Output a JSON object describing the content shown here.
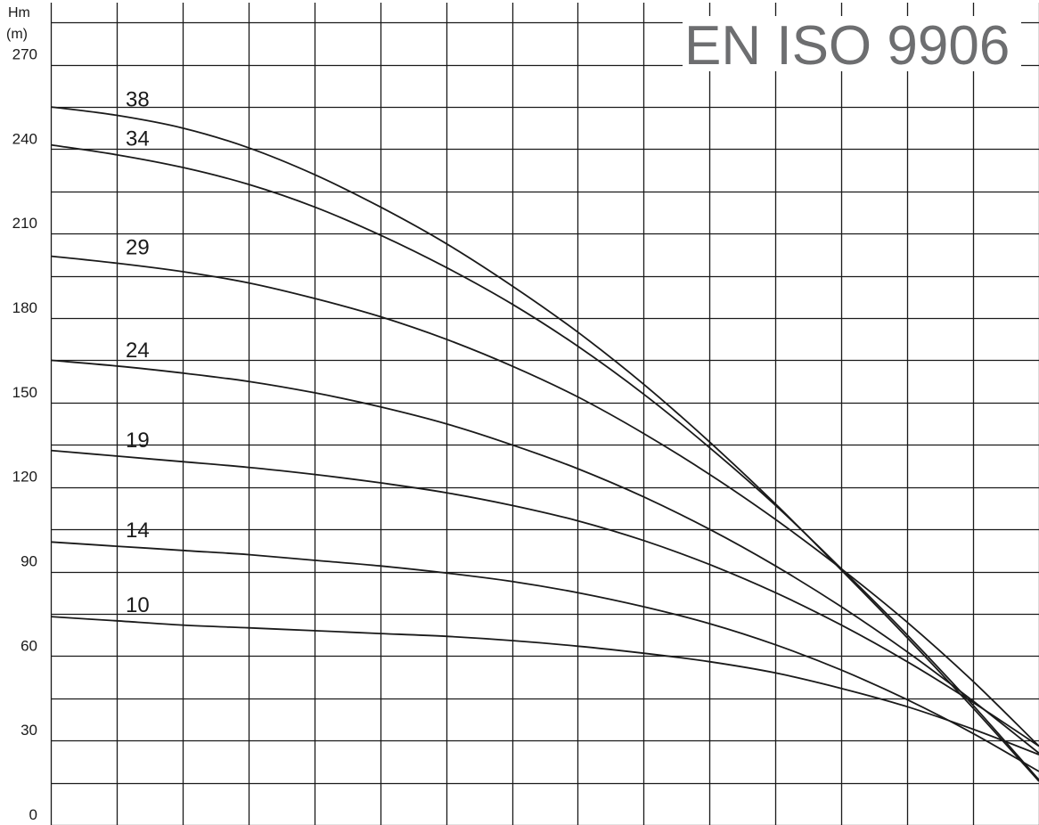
{
  "chart_data": {
    "type": "line",
    "title": "EN ISO 9906",
    "ylabel": "Hm",
    "ylabel_unit": "(m)",
    "xlabel": "",
    "ylim": [
      0,
      292
    ],
    "xlim": [
      0,
      15
    ],
    "y_tick_labels": [
      "270",
      "240",
      "210",
      "180",
      "150",
      "120",
      "90",
      "60",
      "30",
      "0"
    ],
    "y_ticks": [
      270,
      240,
      210,
      180,
      150,
      120,
      90,
      60,
      30,
      0
    ],
    "grid": true,
    "series": [
      {
        "name": "38",
        "x": [
          0,
          1,
          2,
          3,
          4,
          5,
          6,
          7,
          8,
          9,
          10,
          11,
          12,
          13,
          14,
          15
        ],
        "values": [
          255.0,
          252.0,
          247.5,
          240.5,
          231.0,
          219.5,
          206.5,
          191.5,
          175.0,
          156.5,
          136.0,
          114.0,
          90.5,
          66.5,
          41.5,
          15.5
        ]
      },
      {
        "name": "34",
        "x": [
          0,
          1,
          2,
          3,
          4,
          5,
          6,
          7,
          8,
          9,
          10,
          11,
          12,
          13,
          14,
          15
        ],
        "values": [
          241.5,
          238.0,
          233.5,
          227.5,
          219.5,
          209.5,
          198.0,
          185.0,
          170.0,
          153.0,
          134.0,
          113.5,
          91.0,
          67.5,
          42.5,
          16.0
        ]
      },
      {
        "name": "29",
        "x": [
          0,
          1,
          2,
          3,
          4,
          5,
          6,
          7,
          8,
          9,
          10,
          11,
          12,
          13,
          14,
          15
        ],
        "values": [
          202.0,
          199.5,
          196.5,
          192.5,
          187.0,
          180.5,
          172.5,
          163.0,
          152.0,
          139.0,
          124.5,
          108.5,
          91.0,
          72.0,
          51.0,
          28.0
        ]
      },
      {
        "name": "24",
        "x": [
          0,
          1,
          2,
          3,
          4,
          5,
          6,
          7,
          8,
          9,
          10,
          11,
          12,
          13,
          14,
          15
        ],
        "values": [
          165.0,
          163.0,
          160.5,
          157.5,
          153.5,
          148.5,
          142.5,
          135.0,
          126.5,
          116.5,
          105.0,
          92.0,
          77.5,
          61.5,
          44.0,
          25.5
        ]
      },
      {
        "name": "19",
        "x": [
          0,
          1,
          2,
          3,
          4,
          5,
          6,
          7,
          8,
          9,
          10,
          11,
          12,
          13,
          14,
          15
        ],
        "values": [
          133.0,
          131.0,
          129.0,
          127.0,
          124.5,
          121.5,
          118.0,
          113.5,
          108.0,
          101.0,
          92.5,
          82.5,
          71.0,
          58.0,
          43.5,
          28.0
        ]
      },
      {
        "name": "14",
        "x": [
          0,
          1,
          2,
          3,
          4,
          5,
          6,
          7,
          8,
          9,
          10,
          11,
          12,
          13,
          14,
          15
        ],
        "values": [
          100.5,
          99.0,
          97.5,
          96.0,
          94.0,
          92.0,
          89.5,
          86.5,
          82.5,
          77.5,
          71.5,
          64.0,
          55.0,
          44.5,
          32.5,
          19.0
        ]
      },
      {
        "name": "10",
        "x": [
          0,
          1,
          2,
          3,
          4,
          5,
          6,
          7,
          8,
          9,
          10,
          11,
          12,
          13,
          14,
          15
        ],
        "values": [
          74.0,
          72.5,
          71.0,
          70.0,
          69.0,
          68.0,
          67.0,
          65.5,
          63.5,
          61.0,
          58.0,
          54.0,
          48.5,
          42.0,
          34.0,
          25.0
        ]
      }
    ],
    "colors": {
      "grid": "#1a1a1a",
      "curve": "#1a1a1a",
      "title": "#6d6e70"
    }
  }
}
